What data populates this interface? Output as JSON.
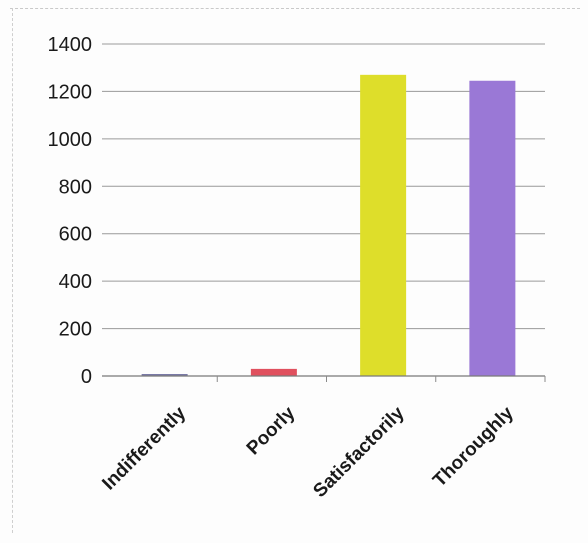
{
  "chart_data": {
    "type": "bar",
    "categories": [
      "Indifferently",
      "Poorly",
      "Satisfactorily",
      "Thoroughly"
    ],
    "values": [
      8,
      30,
      1270,
      1245
    ],
    "colors": [
      "#7a7aa6",
      "#e0505e",
      "#dede2a",
      "#9a78d6"
    ],
    "ylim": [
      0,
      1400
    ],
    "yticks": [
      "0",
      "200",
      "400",
      "600",
      "800",
      "1000",
      "1200",
      "1400"
    ],
    "title": "",
    "xlabel": "",
    "ylabel": "",
    "grid": true,
    "legend": "none"
  }
}
